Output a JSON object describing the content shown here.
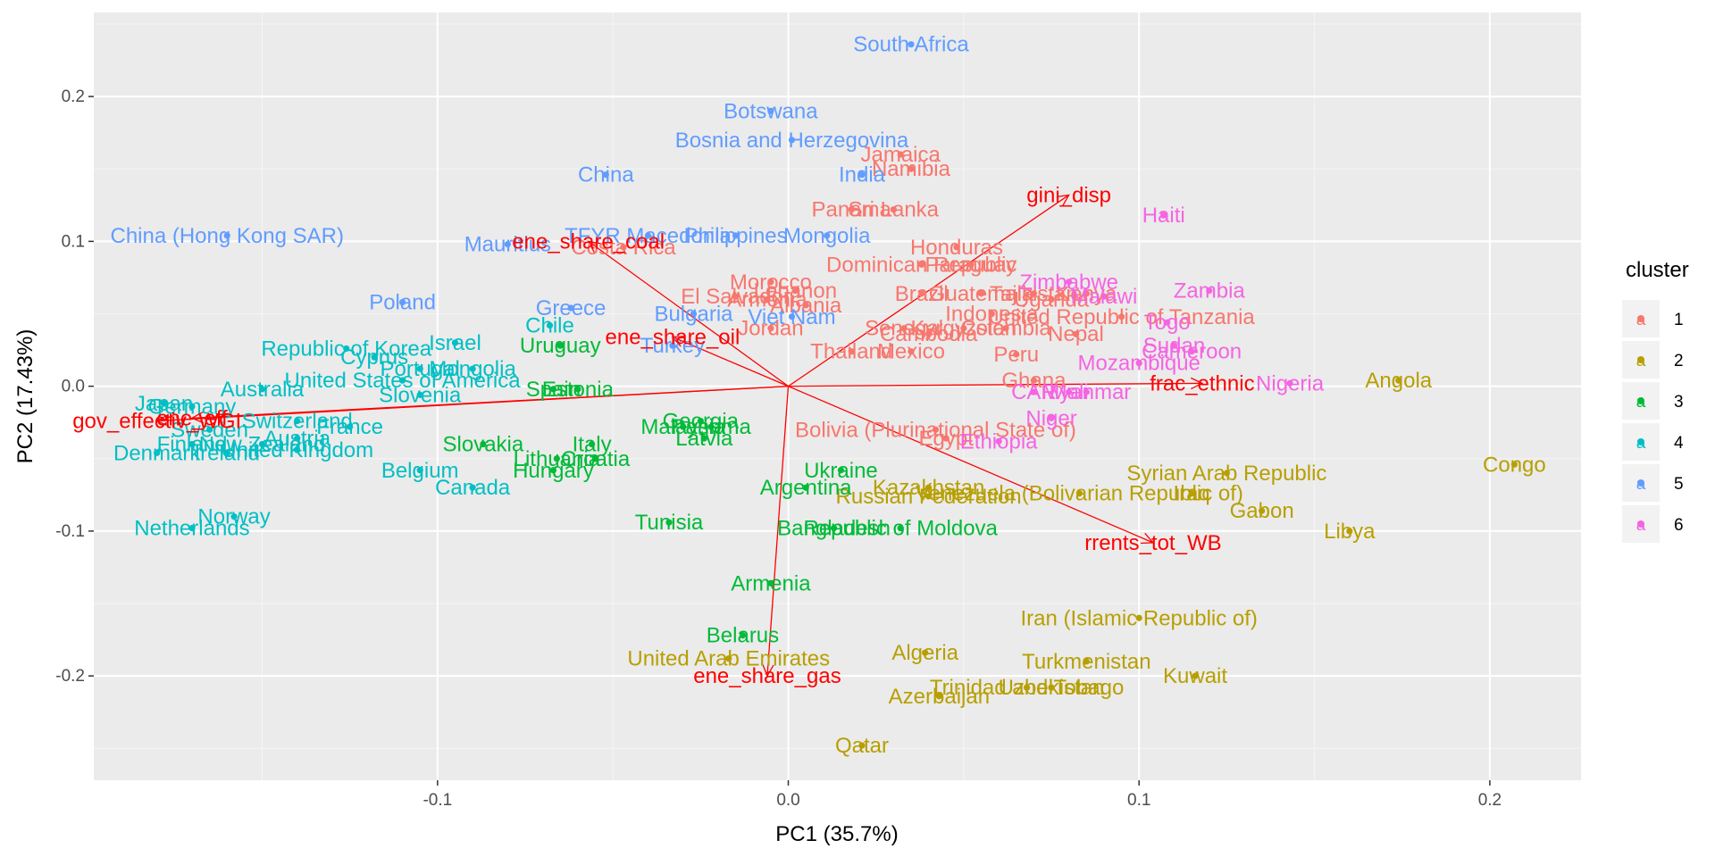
{
  "chart_data": {
    "type": "scatter",
    "title": "",
    "xlabel": "PC1 (35.7%)",
    "ylabel": "PC2 (17.43%)",
    "xlim": [
      -0.198,
      0.226
    ],
    "ylim": [
      -0.272,
      0.258
    ],
    "xticks": [
      -0.1,
      0.0,
      0.1,
      0.2
    ],
    "xtick_labels": [
      "-0.1",
      "0.0",
      "0.1",
      "0.2"
    ],
    "yticks": [
      -0.2,
      -0.1,
      0.0,
      0.1,
      0.2
    ],
    "ytick_labels": [
      "-0.2",
      "-0.1",
      "0.0",
      "0.1",
      "0.2"
    ],
    "grid": true,
    "legend": {
      "title": "cluster",
      "position": "right",
      "entries": [
        {
          "label": "1",
          "color": "#F8766D"
        },
        {
          "label": "2",
          "color": "#B79F00"
        },
        {
          "label": "3",
          "color": "#00BA38"
        },
        {
          "label": "4",
          "color": "#00BFC4"
        },
        {
          "label": "5",
          "color": "#619CFF"
        },
        {
          "label": "6",
          "color": "#F564E3"
        }
      ]
    },
    "colors": {
      "1": "#F8766D",
      "2": "#B79F00",
      "3": "#00BA38",
      "4": "#00BFC4",
      "5": "#619CFF",
      "6": "#F564E3",
      "vector": "#FF0000"
    },
    "points": [
      {
        "label": "Jamaica",
        "x": 0.032,
        "y": 0.16,
        "cluster": "1"
      },
      {
        "label": "Namibia",
        "x": 0.035,
        "y": 0.15,
        "cluster": "1"
      },
      {
        "label": "Panama",
        "x": 0.018,
        "y": 0.122,
        "cluster": "1"
      },
      {
        "label": "Sri Lanka",
        "x": 0.03,
        "y": 0.122,
        "cluster": "1"
      },
      {
        "label": "Costa Rica",
        "x": -0.047,
        "y": 0.096,
        "cluster": "1"
      },
      {
        "label": "Honduras",
        "x": 0.048,
        "y": 0.096,
        "cluster": "1"
      },
      {
        "label": "Dominican Republic",
        "x": 0.038,
        "y": 0.084,
        "cluster": "1"
      },
      {
        "label": "Paraguay",
        "x": 0.052,
        "y": 0.084,
        "cluster": "1"
      },
      {
        "label": "Morocco",
        "x": -0.005,
        "y": 0.072,
        "cluster": "1"
      },
      {
        "label": "Lebanon",
        "x": 0.002,
        "y": 0.066,
        "cluster": "1"
      },
      {
        "label": "El Salvador",
        "x": -0.015,
        "y": 0.062,
        "cluster": "1"
      },
      {
        "label": "Armenia",
        "x": -0.006,
        "y": 0.06,
        "cluster": "1"
      },
      {
        "label": "Albania",
        "x": 0.005,
        "y": 0.056,
        "cluster": "1"
      },
      {
        "label": "Brazil",
        "x": 0.038,
        "y": 0.064,
        "cluster": "1"
      },
      {
        "label": "Guatemala",
        "x": 0.055,
        "y": 0.064,
        "cluster": "1"
      },
      {
        "label": "Indonesia",
        "x": 0.058,
        "y": 0.05,
        "cluster": "1"
      },
      {
        "label": "Colombia",
        "x": 0.062,
        "y": 0.04,
        "cluster": "1"
      },
      {
        "label": "Kyrgyzstan",
        "x": 0.05,
        "y": 0.04,
        "cluster": "1"
      },
      {
        "label": "Jordan",
        "x": -0.005,
        "y": 0.04,
        "cluster": "1"
      },
      {
        "label": "Senegal",
        "x": 0.033,
        "y": 0.04,
        "cluster": "1"
      },
      {
        "label": "Cambodia",
        "x": 0.04,
        "y": 0.036,
        "cluster": "1"
      },
      {
        "label": "Thailand",
        "x": 0.018,
        "y": 0.024,
        "cluster": "1"
      },
      {
        "label": "Mexico",
        "x": 0.035,
        "y": 0.024,
        "cluster": "1"
      },
      {
        "label": "Peru",
        "x": 0.065,
        "y": 0.022,
        "cluster": "1"
      },
      {
        "label": "Ghana",
        "x": 0.07,
        "y": 0.004,
        "cluster": "1"
      },
      {
        "label": "Bolivia (Plurinational State of)",
        "x": 0.042,
        "y": -0.03,
        "cluster": "1"
      },
      {
        "label": "Egypt",
        "x": 0.045,
        "y": -0.036,
        "cluster": "1"
      },
      {
        "label": "Tajikistan",
        "x": 0.07,
        "y": 0.064,
        "cluster": "1"
      },
      {
        "label": "Kenya",
        "x": 0.085,
        "y": 0.064,
        "cluster": "1"
      },
      {
        "label": "Uganda",
        "x": 0.075,
        "y": 0.06,
        "cluster": "1"
      },
      {
        "label": "United Republic of Tanzania",
        "x": 0.095,
        "y": 0.048,
        "cluster": "1"
      },
      {
        "label": "Nepal",
        "x": 0.082,
        "y": 0.036,
        "cluster": "1"
      },
      {
        "label": "Angola",
        "x": 0.174,
        "y": 0.004,
        "cluster": "2"
      },
      {
        "label": "Congo",
        "x": 0.207,
        "y": -0.054,
        "cluster": "2"
      },
      {
        "label": "Syrian Arab Republic",
        "x": 0.125,
        "y": -0.06,
        "cluster": "2"
      },
      {
        "label": "Venezuela (Bolivarian Republic of)",
        "x": 0.083,
        "y": -0.074,
        "cluster": "2"
      },
      {
        "label": "Iraq",
        "x": 0.115,
        "y": -0.074,
        "cluster": "2"
      },
      {
        "label": "Gabon",
        "x": 0.135,
        "y": -0.086,
        "cluster": "2"
      },
      {
        "label": "Libya",
        "x": 0.16,
        "y": -0.1,
        "cluster": "2"
      },
      {
        "label": "Iran (Islamic Republic of)",
        "x": 0.1,
        "y": -0.16,
        "cluster": "2"
      },
      {
        "label": "Turkmenistan",
        "x": 0.085,
        "y": -0.19,
        "cluster": "2"
      },
      {
        "label": "Kuwait",
        "x": 0.116,
        "y": -0.2,
        "cluster": "2"
      },
      {
        "label": "Trinidad and Tobago",
        "x": 0.068,
        "y": -0.208,
        "cluster": "2"
      },
      {
        "label": "Uzbekistan",
        "x": 0.075,
        "y": -0.208,
        "cluster": "2"
      },
      {
        "label": "Algeria",
        "x": 0.039,
        "y": -0.184,
        "cluster": "2"
      },
      {
        "label": "Azerbaijan",
        "x": 0.043,
        "y": -0.214,
        "cluster": "2"
      },
      {
        "label": "United Arab Emirates",
        "x": -0.017,
        "y": -0.188,
        "cluster": "2"
      },
      {
        "label": "Qatar",
        "x": 0.021,
        "y": -0.248,
        "cluster": "2"
      },
      {
        "label": "Kazakhstan",
        "x": 0.04,
        "y": -0.07,
        "cluster": "2"
      },
      {
        "label": "Russian Federation",
        "x": 0.04,
        "y": -0.076,
        "cluster": "2"
      },
      {
        "label": "Uruguay",
        "x": -0.065,
        "y": 0.028,
        "cluster": "3"
      },
      {
        "label": "Spain",
        "x": -0.067,
        "y": -0.002,
        "cluster": "3"
      },
      {
        "label": "Estonia",
        "x": -0.06,
        "y": -0.002,
        "cluster": "3"
      },
      {
        "label": "Georgia",
        "x": -0.025,
        "y": -0.024,
        "cluster": "3"
      },
      {
        "label": "Malaysia",
        "x": -0.03,
        "y": -0.028,
        "cluster": "3"
      },
      {
        "label": "Panama",
        "x": -0.022,
        "y": -0.028,
        "cluster": "3"
      },
      {
        "label": "Latvia",
        "x": -0.024,
        "y": -0.036,
        "cluster": "3"
      },
      {
        "label": "Slovakia",
        "x": -0.087,
        "y": -0.04,
        "cluster": "3"
      },
      {
        "label": "Italy",
        "x": -0.056,
        "y": -0.04,
        "cluster": "3"
      },
      {
        "label": "Lithuania",
        "x": -0.066,
        "y": -0.05,
        "cluster": "3"
      },
      {
        "label": "Croatia",
        "x": -0.055,
        "y": -0.05,
        "cluster": "3"
      },
      {
        "label": "Hungary",
        "x": -0.067,
        "y": -0.058,
        "cluster": "3"
      },
      {
        "label": "Ukraine",
        "x": 0.015,
        "y": -0.058,
        "cluster": "3"
      },
      {
        "label": "Argentina",
        "x": 0.005,
        "y": -0.07,
        "cluster": "3"
      },
      {
        "label": "Tunisia",
        "x": -0.034,
        "y": -0.094,
        "cluster": "3"
      },
      {
        "label": "Bangladesh",
        "x": 0.013,
        "y": -0.098,
        "cluster": "3"
      },
      {
        "label": "Republic of Moldova",
        "x": 0.032,
        "y": -0.098,
        "cluster": "3"
      },
      {
        "label": "Armenia",
        "x": -0.005,
        "y": -0.136,
        "cluster": "3"
      },
      {
        "label": "Belarus",
        "x": -0.013,
        "y": -0.172,
        "cluster": "3"
      },
      {
        "label": "Republic of Korea",
        "x": -0.126,
        "y": 0.026,
        "cluster": "4"
      },
      {
        "label": "Cyprus",
        "x": -0.118,
        "y": 0.02,
        "cluster": "4"
      },
      {
        "label": "Israel",
        "x": -0.095,
        "y": 0.03,
        "cluster": "4"
      },
      {
        "label": "Portugal",
        "x": -0.105,
        "y": 0.012,
        "cluster": "4"
      },
      {
        "label": "Mongolia",
        "x": -0.09,
        "y": 0.012,
        "cluster": "4"
      },
      {
        "label": "United States of America",
        "x": -0.11,
        "y": 0.004,
        "cluster": "4"
      },
      {
        "label": "Chile",
        "x": -0.068,
        "y": 0.042,
        "cluster": "4"
      },
      {
        "label": "Australia",
        "x": -0.15,
        "y": -0.002,
        "cluster": "4"
      },
      {
        "label": "Slovenia",
        "x": -0.105,
        "y": -0.006,
        "cluster": "4"
      },
      {
        "label": "Japan",
        "x": -0.178,
        "y": -0.012,
        "cluster": "4"
      },
      {
        "label": "Germany",
        "x": -0.17,
        "y": -0.014,
        "cluster": "4"
      },
      {
        "label": "Switzerland",
        "x": -0.14,
        "y": -0.024,
        "cluster": "4"
      },
      {
        "label": "France",
        "x": -0.125,
        "y": -0.028,
        "cluster": "4"
      },
      {
        "label": "Sweden",
        "x": -0.165,
        "y": -0.03,
        "cluster": "4"
      },
      {
        "label": "Austria",
        "x": -0.14,
        "y": -0.036,
        "cluster": "4"
      },
      {
        "label": "Finland",
        "x": -0.17,
        "y": -0.04,
        "cluster": "4"
      },
      {
        "label": "New Zealand",
        "x": -0.15,
        "y": -0.04,
        "cluster": "4"
      },
      {
        "label": "United Kingdom",
        "x": -0.14,
        "y": -0.044,
        "cluster": "4"
      },
      {
        "label": "Denmark",
        "x": -0.18,
        "y": -0.046,
        "cluster": "4"
      },
      {
        "label": "Ireland",
        "x": -0.16,
        "y": -0.046,
        "cluster": "4"
      },
      {
        "label": "Belgium",
        "x": -0.105,
        "y": -0.058,
        "cluster": "4"
      },
      {
        "label": "Canada",
        "x": -0.09,
        "y": -0.07,
        "cluster": "4"
      },
      {
        "label": "Norway",
        "x": -0.158,
        "y": -0.09,
        "cluster": "4"
      },
      {
        "label": "Netherlands",
        "x": -0.17,
        "y": -0.098,
        "cluster": "4"
      },
      {
        "label": "South Africa",
        "x": 0.035,
        "y": 0.236,
        "cluster": "5"
      },
      {
        "label": "Botswana",
        "x": -0.005,
        "y": 0.19,
        "cluster": "5"
      },
      {
        "label": "Bosnia and Herzegovina",
        "x": 0.001,
        "y": 0.17,
        "cluster": "5"
      },
      {
        "label": "India",
        "x": 0.021,
        "y": 0.146,
        "cluster": "5"
      },
      {
        "label": "China",
        "x": -0.052,
        "y": 0.146,
        "cluster": "5"
      },
      {
        "label": "China (Hong Kong SAR)",
        "x": -0.16,
        "y": 0.104,
        "cluster": "5"
      },
      {
        "label": "Mauritius",
        "x": -0.08,
        "y": 0.098,
        "cluster": "5"
      },
      {
        "label": "TFYR Macedonia",
        "x": -0.04,
        "y": 0.104,
        "cluster": "5"
      },
      {
        "label": "Philippines",
        "x": -0.015,
        "y": 0.104,
        "cluster": "5"
      },
      {
        "label": "Mongolia",
        "x": 0.011,
        "y": 0.104,
        "cluster": "5"
      },
      {
        "label": "Poland",
        "x": -0.11,
        "y": 0.058,
        "cluster": "5"
      },
      {
        "label": "Greece",
        "x": -0.062,
        "y": 0.054,
        "cluster": "5"
      },
      {
        "label": "Bulgaria",
        "x": -0.027,
        "y": 0.05,
        "cluster": "5"
      },
      {
        "label": "Viet Nam",
        "x": 0.001,
        "y": 0.048,
        "cluster": "5"
      },
      {
        "label": "Turkey",
        "x": -0.033,
        "y": 0.028,
        "cluster": "5"
      },
      {
        "label": "Haiti",
        "x": 0.107,
        "y": 0.118,
        "cluster": "6"
      },
      {
        "label": "Zimbabwe",
        "x": 0.08,
        "y": 0.072,
        "cluster": "6"
      },
      {
        "label": "Zambia",
        "x": 0.12,
        "y": 0.066,
        "cluster": "6"
      },
      {
        "label": "Malawi",
        "x": 0.09,
        "y": 0.062,
        "cluster": "6"
      },
      {
        "label": "Togo",
        "x": 0.108,
        "y": 0.044,
        "cluster": "6"
      },
      {
        "label": "Sudan",
        "x": 0.11,
        "y": 0.028,
        "cluster": "6"
      },
      {
        "label": "Cameroon",
        "x": 0.115,
        "y": 0.024,
        "cluster": "6"
      },
      {
        "label": "Mozambique",
        "x": 0.1,
        "y": 0.016,
        "cluster": "6"
      },
      {
        "label": "Nigeria",
        "x": 0.143,
        "y": 0.002,
        "cluster": "6"
      },
      {
        "label": "CAR",
        "x": 0.07,
        "y": -0.004,
        "cluster": "6"
      },
      {
        "label": "Myanmar",
        "x": 0.085,
        "y": -0.004,
        "cluster": "6"
      },
      {
        "label": "Mali",
        "x": 0.08,
        "y": -0.004,
        "cluster": "6"
      },
      {
        "label": "Niger",
        "x": 0.075,
        "y": -0.022,
        "cluster": "6"
      },
      {
        "label": "Ethiopia",
        "x": 0.06,
        "y": -0.038,
        "cluster": "6"
      }
    ],
    "vectors": [
      {
        "label": "gini_disp",
        "x": 0.08,
        "y": 0.132
      },
      {
        "label": "ene_share_coal",
        "x": -0.057,
        "y": 0.1
      },
      {
        "label": "ene_share_oil",
        "x": -0.033,
        "y": 0.034
      },
      {
        "label": "frac_ethnic",
        "x": 0.118,
        "y": 0.002
      },
      {
        "label": "rrents_tot_WB",
        "x": 0.104,
        "y": -0.108
      },
      {
        "label": "ene_share_gas",
        "x": -0.006,
        "y": -0.2
      },
      {
        "label": "gov_effectiv_WGI",
        "x": -0.18,
        "y": -0.024
      },
      {
        "label": "ene_eff",
        "x": -0.17,
        "y": -0.022
      }
    ]
  }
}
